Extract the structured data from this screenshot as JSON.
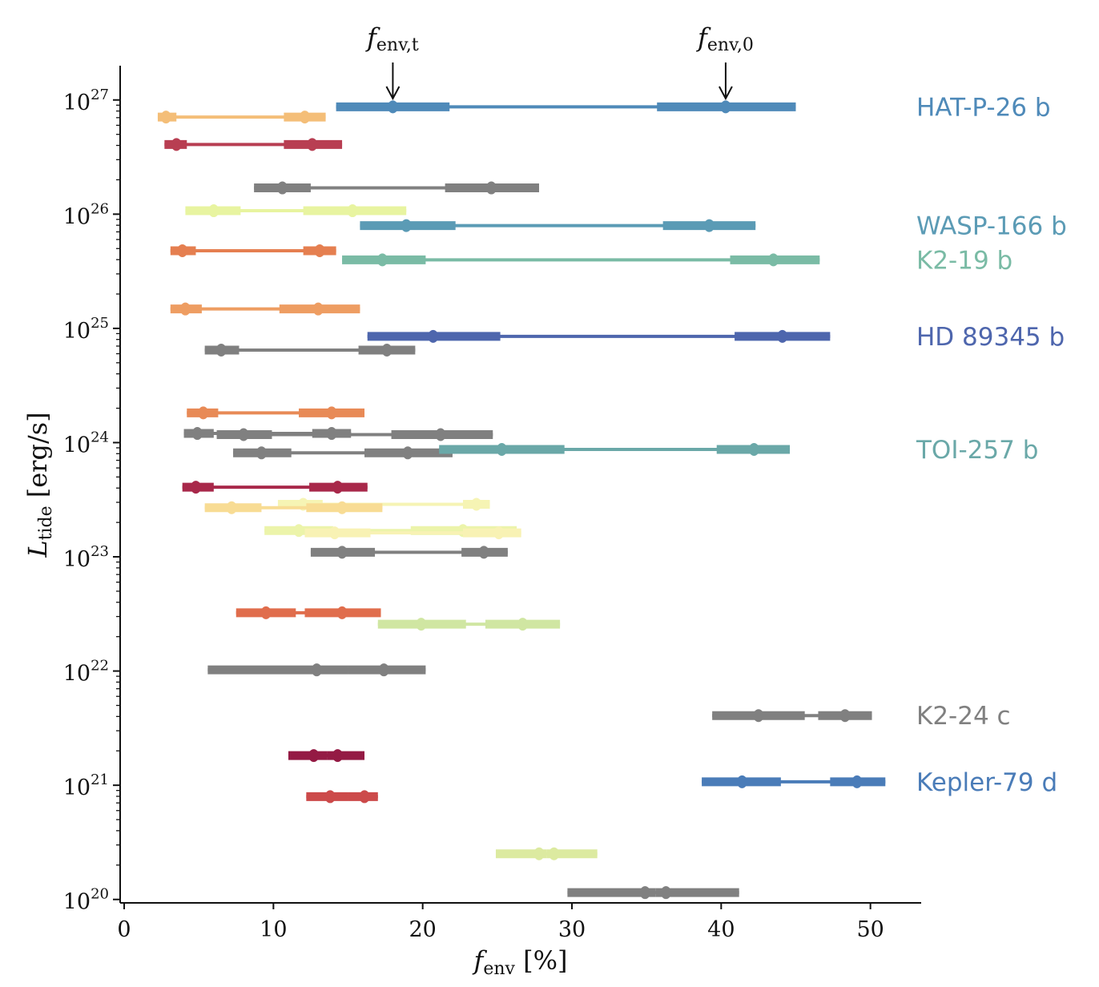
{
  "chart_data": {
    "type": "range",
    "xlabel": {
      "main": "f",
      "sub": "env",
      "unit": " [%]"
    },
    "ylabel": {
      "main": "L",
      "sub": "tide",
      "unit": " [erg/s]"
    },
    "xlim": [
      -0.27,
      53.4
    ],
    "ylim_log10": [
      19.97,
      27.3
    ],
    "y_scale": "log",
    "x_ticks": [
      "0",
      "10",
      "20",
      "30",
      "40",
      "50"
    ],
    "x_tick_values": [
      0,
      10,
      20,
      30,
      40,
      50
    ],
    "y_ticks": [
      {
        "base": "10",
        "exp": "20"
      },
      {
        "base": "10",
        "exp": "21"
      },
      {
        "base": "10",
        "exp": "22"
      },
      {
        "base": "10",
        "exp": "23"
      },
      {
        "base": "10",
        "exp": "24"
      },
      {
        "base": "10",
        "exp": "25"
      },
      {
        "base": "10",
        "exp": "26"
      },
      {
        "base": "10",
        "exp": "27"
      }
    ],
    "y_tick_values_log10": [
      20,
      21,
      22,
      23,
      24,
      25,
      26,
      27
    ],
    "grid": false,
    "annotations": [
      {
        "main": "f",
        "sub": "env,t",
        "x": 18.0
      },
      {
        "main": "f",
        "sub": "env,0",
        "x": 40.3
      }
    ],
    "row_fields": [
      "log10_L_tide",
      "f_env_t_low",
      "f_env_t",
      "f_env_t_high",
      "f_env_0_low",
      "f_env_0",
      "f_env_0_high",
      "color",
      "label"
    ],
    "rows": [
      [
        26.94,
        14.2,
        18.0,
        21.8,
        35.7,
        40.3,
        45.0,
        "#4f8ab9",
        "HAT-P-26 b"
      ],
      [
        26.85,
        2.25,
        2.8,
        3.5,
        10.7,
        12.1,
        13.5,
        "#f4be78",
        ""
      ],
      [
        26.61,
        2.7,
        3.5,
        4.2,
        10.7,
        12.6,
        14.6,
        "#b83e52",
        ""
      ],
      [
        26.23,
        8.7,
        10.6,
        12.5,
        21.5,
        24.6,
        27.8,
        "#808080",
        ""
      ],
      [
        26.03,
        4.1,
        6.0,
        7.8,
        12.0,
        15.3,
        18.9,
        "#e8f4a0",
        ""
      ],
      [
        25.9,
        15.8,
        18.9,
        22.2,
        36.1,
        39.2,
        42.3,
        "#5b9bb5",
        "WASP-166 b"
      ],
      [
        25.68,
        3.1,
        3.9,
        4.8,
        12.0,
        13.1,
        14.2,
        "#e57f50",
        ""
      ],
      [
        25.6,
        14.6,
        17.3,
        20.2,
        40.6,
        43.5,
        46.6,
        "#7abba5",
        "K2-19 b"
      ],
      [
        25.17,
        3.1,
        4.1,
        5.2,
        10.4,
        13.0,
        15.8,
        "#ee9d62",
        ""
      ],
      [
        24.93,
        16.3,
        20.7,
        25.2,
        40.9,
        44.1,
        47.3,
        "#4e66ad",
        "HD 89345 b"
      ],
      [
        24.81,
        5.4,
        6.5,
        7.7,
        15.7,
        17.6,
        19.5,
        "#808080",
        ""
      ],
      [
        24.26,
        4.2,
        5.3,
        6.3,
        11.7,
        13.9,
        16.1,
        "#e88a56",
        ""
      ],
      [
        24.08,
        4.0,
        4.9,
        6.0,
        12.6,
        13.9,
        15.2,
        "#808080",
        ""
      ],
      [
        24.07,
        6.2,
        8.0,
        9.9,
        17.9,
        21.2,
        24.7,
        "#808080",
        ""
      ],
      [
        23.91,
        7.3,
        9.2,
        11.2,
        16.1,
        19.0,
        22.0,
        "#808080",
        ""
      ],
      [
        23.94,
        21.1,
        25.3,
        29.5,
        39.7,
        42.2,
        44.6,
        "#6aa8a8",
        "TOI-257 b"
      ],
      [
        23.61,
        3.9,
        4.8,
        6.0,
        12.4,
        14.3,
        16.3,
        "#a8284a",
        ""
      ],
      [
        23.46,
        10.3,
        12.0,
        13.3,
        22.7,
        23.6,
        24.5,
        "#f6f4b4",
        ""
      ],
      [
        23.43,
        5.4,
        7.2,
        9.2,
        12.2,
        14.6,
        17.3,
        "#f8dc94",
        ""
      ],
      [
        23.23,
        9.4,
        11.7,
        14.0,
        19.2,
        22.7,
        26.3,
        "#ecf4aa",
        ""
      ],
      [
        23.21,
        12.1,
        14.1,
        16.5,
        22.7,
        25.1,
        26.6,
        "#f8f2b4",
        ""
      ],
      [
        23.04,
        12.5,
        14.6,
        16.8,
        22.6,
        24.1,
        25.7,
        "#808080",
        ""
      ],
      [
        22.51,
        7.5,
        9.5,
        11.5,
        12.1,
        14.6,
        17.2,
        "#e06d4c",
        ""
      ],
      [
        22.41,
        17.0,
        19.9,
        22.9,
        24.2,
        26.7,
        29.2,
        "#d0e6a2",
        ""
      ],
      [
        22.01,
        5.6,
        12.9,
        15.0,
        15.0,
        17.4,
        20.2,
        "#808080",
        ""
      ],
      [
        21.61,
        39.4,
        42.5,
        45.6,
        46.5,
        48.3,
        50.1,
        "#808080",
        "K2-24 c"
      ],
      [
        21.26,
        11.0,
        12.7,
        13.6,
        13.6,
        14.3,
        16.1,
        "#941a44",
        ""
      ],
      [
        21.03,
        38.7,
        41.4,
        44.0,
        47.3,
        49.1,
        51.0,
        "#4a7cb8",
        "Kepler-79 d"
      ],
      [
        20.9,
        12.2,
        13.8,
        15.0,
        15.0,
        16.1,
        17.0,
        "#cc4a4a",
        ""
      ],
      [
        20.4,
        24.9,
        27.8,
        28.3,
        28.3,
        28.8,
        31.7,
        "#dceaa0",
        ""
      ],
      [
        20.06,
        29.7,
        34.9,
        35.6,
        35.6,
        36.3,
        41.2,
        "#808080",
        ""
      ]
    ],
    "planet_labels": [
      {
        "text": "HAT-P-26 b",
        "log10_L": 26.94,
        "color": "#4f8ab9"
      },
      {
        "text": "WASP-166 b",
        "log10_L": 25.9,
        "color": "#5b9bb5"
      },
      {
        "text": "K2-19 b",
        "log10_L": 25.6,
        "color": "#7abba5"
      },
      {
        "text": "HD 89345 b",
        "log10_L": 24.93,
        "color": "#4e66ad"
      },
      {
        "text": "TOI-257 b",
        "log10_L": 23.94,
        "color": "#6aa8a8"
      },
      {
        "text": "K2-24 c",
        "log10_L": 21.61,
        "color": "#808080"
      },
      {
        "text": "Kepler-79 d",
        "log10_L": 21.03,
        "color": "#4a7cb8"
      }
    ]
  }
}
